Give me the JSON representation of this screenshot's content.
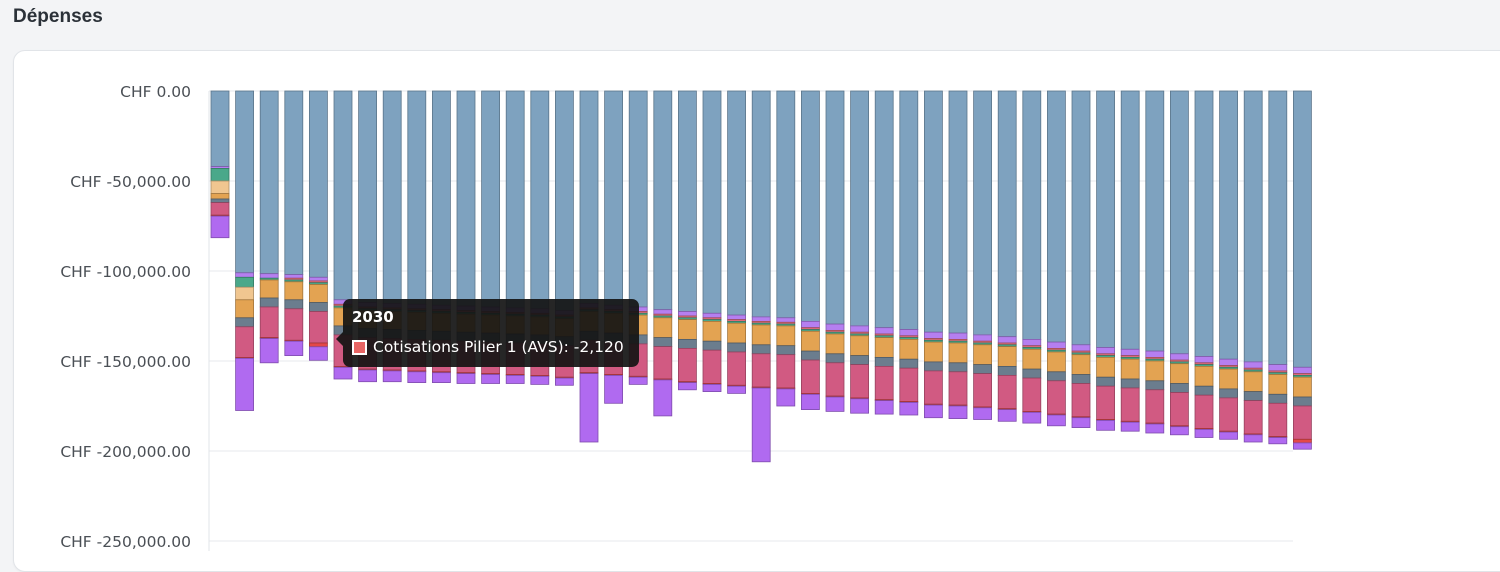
{
  "page": {
    "title": "Dépenses"
  },
  "tooltip": {
    "title": "2030",
    "series_label": "Cotisations Pilier 1 (AVS): -2,120",
    "swatch_color": "#e86565"
  },
  "chart_data": {
    "type": "bar",
    "stacked": true,
    "ylim": [
      -250000,
      0
    ],
    "y_ticks": [
      0,
      -50000,
      -100000,
      -150000,
      -200000,
      -250000
    ],
    "y_tick_labels": [
      "CHF 0.00",
      "CHF -50,000.00",
      "CHF -100,000.00",
      "CHF -150,000.00",
      "CHF -200,000.00",
      "CHF -250,000.00"
    ],
    "grid": true,
    "legend": "none",
    "highlighted_index": 4,
    "series": [
      {
        "color": "#7ea2bf",
        "values": [
          -42000,
          -101000,
          -101500,
          -102000,
          -103500,
          -116000,
          -117500,
          -118000,
          -118500,
          -119000,
          -119500,
          -120000,
          -120500,
          -121000,
          -122000,
          -118000,
          -119000,
          -120000,
          -121500,
          -122500,
          -123500,
          -124500,
          -125500,
          -126000,
          -128000,
          -129500,
          -130500,
          -131500,
          -132500,
          -134000,
          -134500,
          -135500,
          -136500,
          -138000,
          -139500,
          -141000,
          -142500,
          -143500,
          -144500,
          -146000,
          -147500,
          -149000,
          -150500,
          -152000,
          -153500
        ]
      },
      {
        "color": "#b57ff0",
        "values": [
          -1000,
          -2500,
          -2500,
          -2000,
          -2000,
          -2500,
          -2500,
          -2500,
          -2500,
          -2500,
          -2500,
          -2500,
          -2500,
          -2500,
          -2500,
          -2500,
          -2500,
          -2500,
          -2500,
          -2500,
          -2500,
          -2500,
          -2500,
          -2500,
          -3500,
          -3500,
          -3500,
          -3500,
          -3500,
          -3500,
          -3500,
          -3500,
          -3500,
          -3500,
          -3500,
          -3500,
          -3500,
          -3500,
          -3500,
          -3500,
          -3500,
          -3500,
          -3500,
          -3500,
          -3500
        ]
      },
      {
        "color": "#e06a78",
        "values": [
          0,
          0,
          0,
          -1000,
          -1000,
          -1000,
          -1000,
          -1000,
          -1000,
          -1000,
          -1000,
          -1000,
          -1000,
          -1000,
          -1000,
          -1000,
          -1000,
          -1000,
          -1000,
          -1000,
          -1000,
          -1000,
          -1000,
          -1000,
          -1000,
          -1000,
          -1000,
          -1000,
          -1000,
          -1000,
          -1000,
          -1000,
          -1000,
          -1000,
          -1000,
          -1000,
          -1000,
          -1000,
          -1000,
          -1000,
          -1000,
          -1000,
          -1000,
          -1000,
          -1000
        ]
      },
      {
        "color": "#4aa88a",
        "values": [
          -7000,
          -5500,
          -1000,
          -1000,
          -1000,
          -1000,
          -1000,
          -1000,
          -1000,
          -1000,
          -1000,
          -1000,
          -1000,
          -1000,
          -1000,
          -1000,
          -1000,
          -1000,
          -1000,
          -1000,
          -1000,
          -1000,
          -1000,
          -1000,
          -1000,
          -1000,
          -1000,
          -1000,
          -1000,
          -1000,
          -1000,
          -1000,
          -1000,
          -1000,
          -1000,
          -1000,
          -1000,
          -1000,
          -1000,
          -1000,
          -1000,
          -1000,
          -1000,
          -1000,
          -1000
        ]
      },
      {
        "color": "#f0c690",
        "values": [
          -7000,
          -7000,
          0,
          0,
          0,
          0,
          0,
          0,
          0,
          0,
          0,
          0,
          0,
          0,
          0,
          0,
          0,
          0,
          0,
          0,
          0,
          0,
          0,
          0,
          0,
          0,
          0,
          0,
          0,
          0,
          0,
          0,
          0,
          0,
          0,
          0,
          0,
          0,
          0,
          0,
          0,
          0,
          0,
          0,
          0
        ]
      },
      {
        "color": "#e3a352",
        "values": [
          -3000,
          -10000,
          -10000,
          -10000,
          -10000,
          -10000,
          -10000,
          -10000,
          -10000,
          -10000,
          -10000,
          -10000,
          -10000,
          -10000,
          -10000,
          -11000,
          -11000,
          -11000,
          -11000,
          -11000,
          -11000,
          -11000,
          -11000,
          -11000,
          -11000,
          -11000,
          -11000,
          -11000,
          -11000,
          -11000,
          -11000,
          -11000,
          -11000,
          -11000,
          -11000,
          -11000,
          -11000,
          -11000,
          -11000,
          -11000,
          -11000,
          -11000,
          -11000,
          -11000,
          -11000
        ]
      },
      {
        "color": "#6b7d8e",
        "values": [
          -2000,
          -5000,
          -5000,
          -5000,
          -5000,
          -5000,
          -5000,
          -5000,
          -5000,
          -5000,
          -5000,
          -5000,
          -5000,
          -5000,
          -5000,
          -5000,
          -5000,
          -5000,
          -5000,
          -5000,
          -5000,
          -5000,
          -5000,
          -5000,
          -5000,
          -5000,
          -5000,
          -5000,
          -5000,
          -5000,
          -5000,
          -5000,
          -5000,
          -5000,
          -5000,
          -5000,
          -5000,
          -5000,
          -5000,
          -5000,
          -5000,
          -5000,
          -5000,
          -5000,
          -5000
        ]
      },
      {
        "color": "#d15a82",
        "values": [
          -7000,
          -17000,
          -17000,
          -17500,
          -17500,
          -17500,
          -17500,
          -17500,
          -17500,
          -17500,
          -17500,
          -17500,
          -17500,
          -17500,
          -17500,
          -18000,
          -18000,
          -18000,
          -18000,
          -18500,
          -18500,
          -18500,
          -18500,
          -18500,
          -18500,
          -18500,
          -18500,
          -18500,
          -18500,
          -18500,
          -18500,
          -18500,
          -18500,
          -18500,
          -18500,
          -18500,
          -18500,
          -18500,
          -18500,
          -18500,
          -18500,
          -18500,
          -18500,
          -18500,
          -18500
        ]
      },
      {
        "color": "#e44848",
        "values": [
          -500,
          -500,
          -500,
          -500,
          -2120,
          -500,
          -500,
          -500,
          -500,
          -500,
          -500,
          -500,
          -500,
          -500,
          -500,
          -500,
          -500,
          -500,
          -500,
          -500,
          -500,
          -500,
          -500,
          -500,
          -500,
          -500,
          -500,
          -500,
          -500,
          -500,
          -500,
          -500,
          -500,
          -500,
          -500,
          -500,
          -500,
          -500,
          -500,
          -500,
          -500,
          -500,
          -500,
          -500,
          -2000
        ]
      },
      {
        "color": "#b06af0",
        "values": [
          -12000,
          -29000,
          -13500,
          -8000,
          -7500,
          -6500,
          -6500,
          -6000,
          -6000,
          -5500,
          -5500,
          -5000,
          -4500,
          -4500,
          -4000,
          -38000,
          -15500,
          -4000,
          -20000,
          -4000,
          -4000,
          -4000,
          -41000,
          -9500,
          -8500,
          -8000,
          -8000,
          -7500,
          -7000,
          -7000,
          -7000,
          -6500,
          -6500,
          -6000,
          -6000,
          -5500,
          -5500,
          -5000,
          -5000,
          -4500,
          -4500,
          -4000,
          -4000,
          -3500,
          -3500
        ]
      }
    ]
  }
}
